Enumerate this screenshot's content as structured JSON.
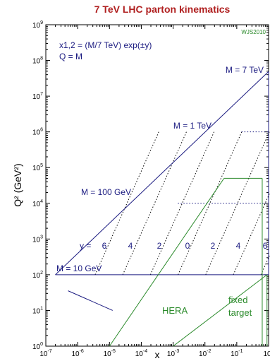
{
  "chart_data": {
    "type": "line",
    "title": "7 TeV LHC parton kinematics",
    "xlabel": "x",
    "ylabel": "Q² (GeV²)",
    "xscale": "log",
    "yscale": "log",
    "xlim": [
      1e-07,
      1
    ],
    "ylim": [
      1,
      1000000000.0
    ],
    "x_ticks": [
      "10-7",
      "10-6",
      "10-5",
      "10-4",
      "10-3",
      "10-2",
      "10-1",
      "100"
    ],
    "y_ticks": [
      "100",
      "101",
      "102",
      "103",
      "104",
      "105",
      "106",
      "107",
      "108",
      "109"
    ],
    "watermark": "WJS2010",
    "formula_line1": "x1,2 = (M/7 TeV) exp(±y)",
    "formula_line2": "Q = M",
    "mass_labels": [
      "M = 7 TeV",
      "M = 1 TeV",
      "M = 100 GeV",
      "M = 10 GeV"
    ],
    "rapidity_prefix": "y =",
    "rapidity_labels": [
      "6",
      "4",
      "2",
      "0",
      "2",
      "4",
      "6"
    ],
    "region_labels": {
      "hera": "HERA",
      "fixed_target_1": "fixed",
      "fixed_target_2": "target"
    },
    "colors": {
      "lhc": "#1a1a80",
      "regions": "#2a8a2a",
      "title": "#b02020"
    }
  }
}
